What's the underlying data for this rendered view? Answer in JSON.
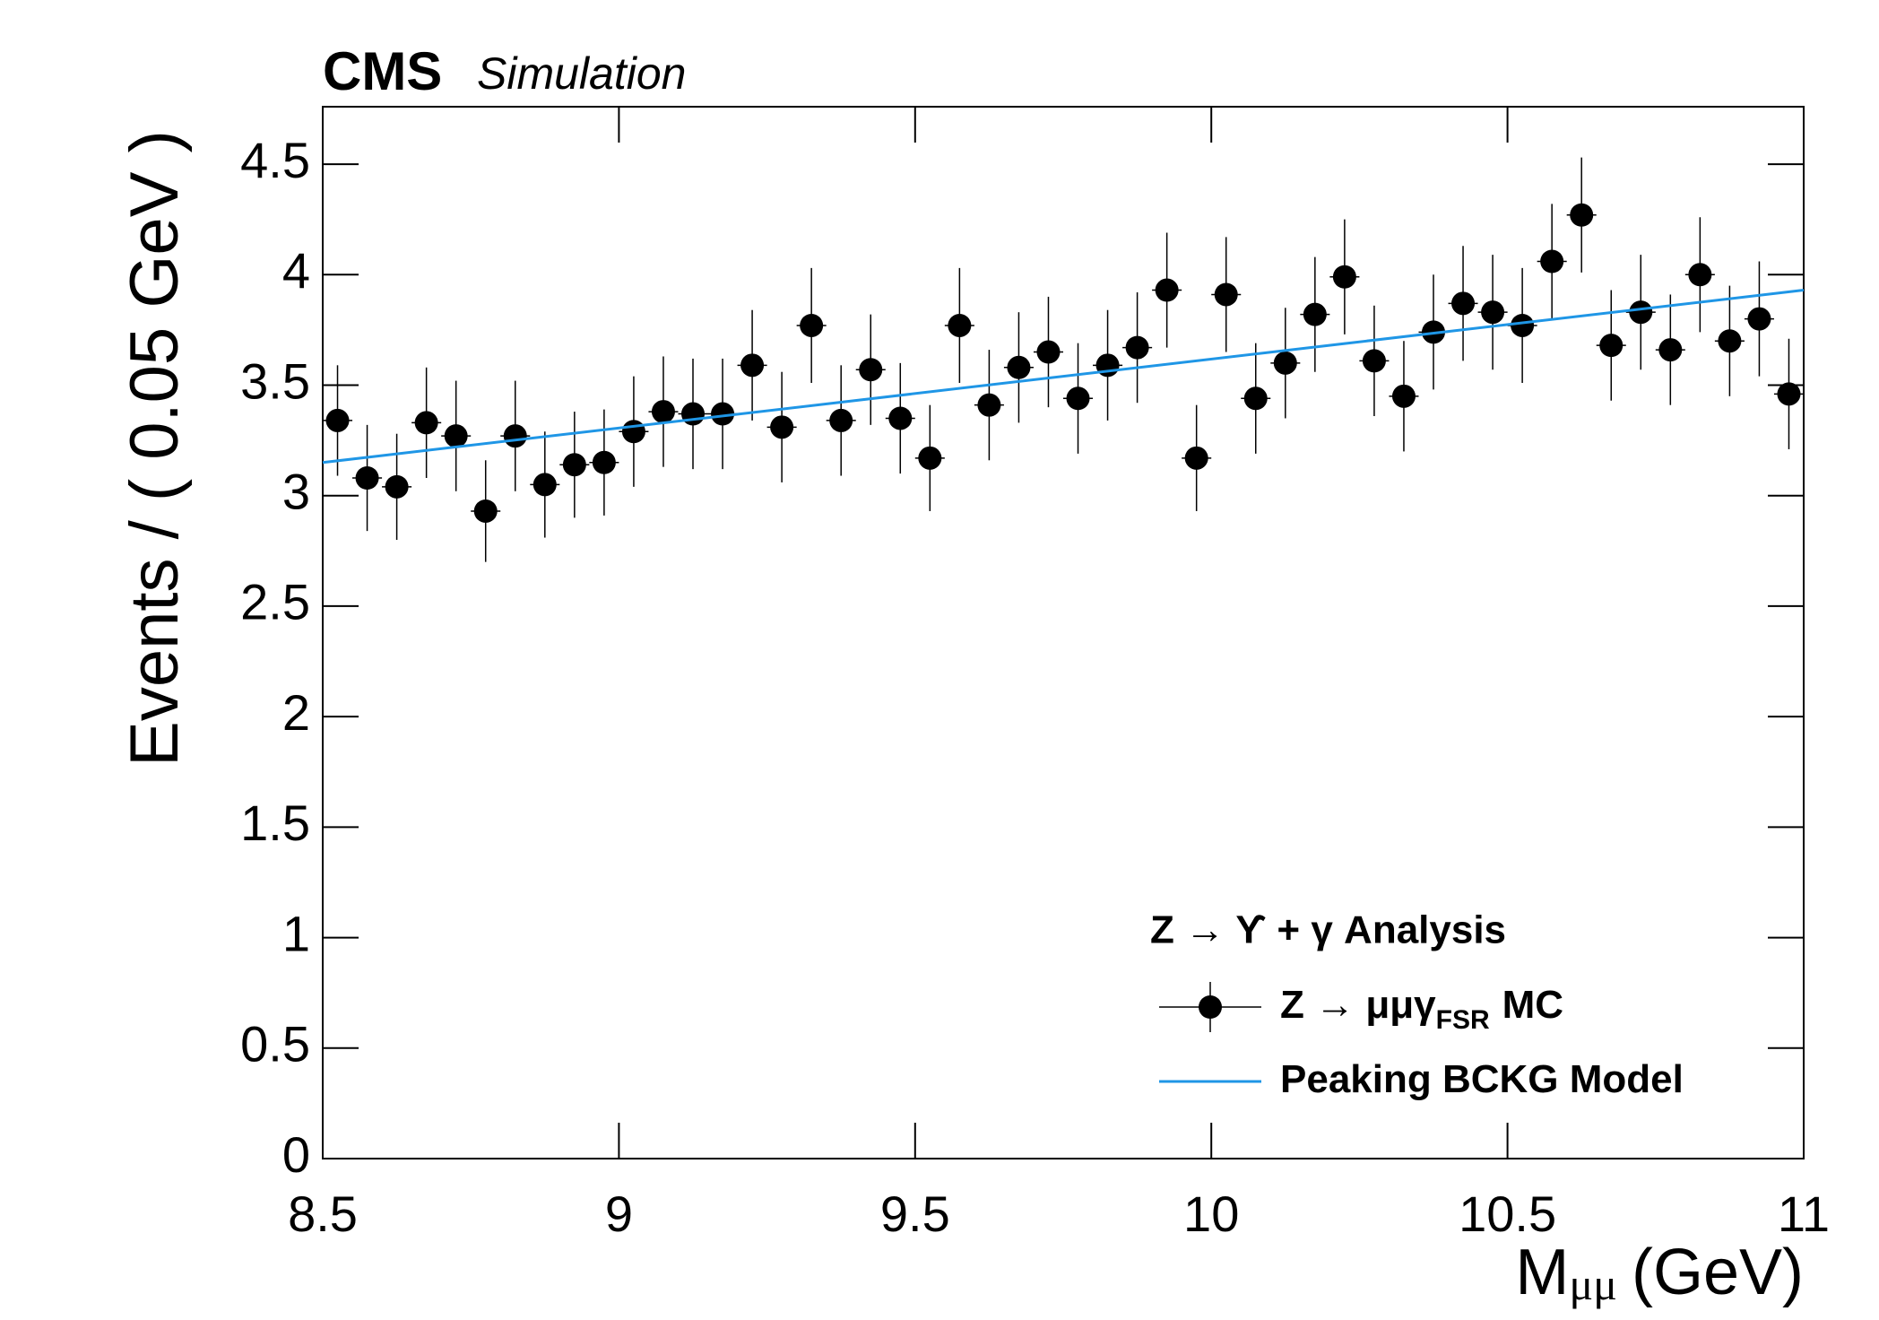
{
  "chart_data": {
    "type": "errorbar",
    "brand": "CMS",
    "subtitle": "Simulation",
    "y_label": "Events / ( 0.05 GeV )",
    "x_label": {
      "main": "M",
      "sub": "μμ",
      "unit": "(GeV)"
    },
    "legend_title": "Z → ϒ + γ Analysis",
    "xlim": [
      8.5,
      11
    ],
    "xticks": [
      8.5,
      9,
      9.5,
      10,
      10.5,
      11
    ],
    "ylim": [
      0,
      4.76
    ],
    "yticks": [
      0,
      0.5,
      1,
      1.5,
      2,
      2.5,
      3,
      3.5,
      4,
      4.5
    ],
    "bin_width": 0.05,
    "series": [
      {
        "name": "Z → μμγ",
        "name_sub": "FSR",
        "name_suffix": "MC",
        "color": "#000000",
        "kind": "points",
        "x": [
          8.525,
          8.575,
          8.625,
          8.675,
          8.725,
          8.775,
          8.825,
          8.875,
          8.925,
          8.975,
          9.025,
          9.075,
          9.125,
          9.175,
          9.225,
          9.275,
          9.325,
          9.375,
          9.425,
          9.475,
          9.525,
          9.575,
          9.625,
          9.675,
          9.725,
          9.775,
          9.825,
          9.875,
          9.925,
          9.975,
          10.025,
          10.075,
          10.125,
          10.175,
          10.225,
          10.275,
          10.325,
          10.375,
          10.425,
          10.475,
          10.525,
          10.575,
          10.625,
          10.675,
          10.725,
          10.775,
          10.825,
          10.875,
          10.925,
          10.975
        ],
        "values": [
          3.34,
          3.08,
          3.04,
          3.33,
          3.27,
          2.93,
          3.27,
          3.05,
          3.14,
          3.15,
          3.29,
          3.38,
          3.37,
          3.37,
          3.59,
          3.31,
          3.77,
          3.34,
          3.57,
          3.35,
          3.17,
          3.77,
          3.41,
          3.58,
          3.65,
          3.44,
          3.59,
          3.67,
          3.93,
          3.17,
          3.91,
          3.44,
          3.6,
          3.82,
          3.99,
          3.61,
          3.45,
          3.74,
          3.87,
          3.83,
          3.77,
          4.06,
          4.27,
          3.68,
          3.83,
          3.66,
          4.0,
          3.7,
          3.8,
          3.46
        ],
        "errors": [
          0.25,
          0.24,
          0.24,
          0.25,
          0.25,
          0.23,
          0.25,
          0.24,
          0.24,
          0.24,
          0.25,
          0.25,
          0.25,
          0.25,
          0.25,
          0.25,
          0.26,
          0.25,
          0.25,
          0.25,
          0.24,
          0.26,
          0.25,
          0.25,
          0.25,
          0.25,
          0.25,
          0.25,
          0.26,
          0.24,
          0.26,
          0.25,
          0.25,
          0.26,
          0.26,
          0.25,
          0.25,
          0.26,
          0.26,
          0.26,
          0.26,
          0.26,
          0.26,
          0.25,
          0.26,
          0.25,
          0.26,
          0.25,
          0.26,
          0.25
        ]
      },
      {
        "name": "Peaking BCKG Model",
        "color": "#1f96e6",
        "kind": "line",
        "x": [
          8.5,
          11
        ],
        "values": [
          3.15,
          3.93
        ]
      }
    ]
  }
}
